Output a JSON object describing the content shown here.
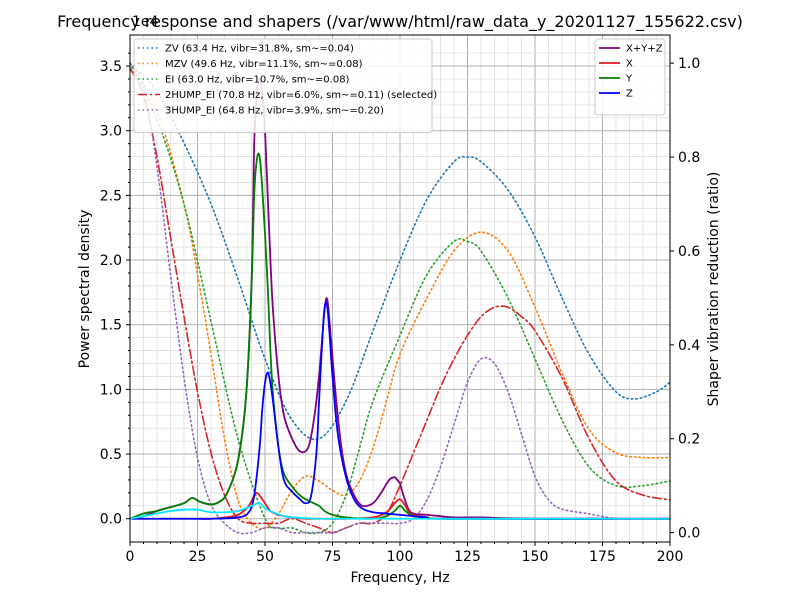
{
  "chart_data": {
    "type": "line",
    "title": "Frequency response and shapers (/var/www/html/raw_data_y_20201127_155622.csv)",
    "xlabel": "Frequency, Hz",
    "ylabel": "Power spectral density",
    "ylabel_right": "Shaper vibration reduction (ratio)",
    "y_multiplier": "1e4",
    "xlim": [
      0,
      200
    ],
    "ylim": [
      -0.18,
      3.74
    ],
    "ylim_right": [
      -0.02,
      1.06
    ],
    "x_ticks": [
      "0",
      "25",
      "50",
      "75",
      "100",
      "125",
      "150",
      "175",
      "200"
    ],
    "y_ticks": [
      "0.0",
      "0.5",
      "1.0",
      "1.5",
      "2.0",
      "2.5",
      "3.0",
      "3.5"
    ],
    "y_ticks_right": [
      "0.0",
      "0.2",
      "0.4",
      "0.6",
      "0.8",
      "1.0"
    ],
    "grid": true,
    "psd_series": [
      {
        "name": "X+Y+Z",
        "color": "#800080",
        "style": "solid",
        "x": [
          0,
          5,
          10,
          15,
          20,
          23,
          26,
          30,
          33,
          36,
          40,
          43,
          45,
          46,
          47,
          48,
          49,
          50,
          51,
          52,
          53,
          55,
          57,
          60,
          63,
          66,
          68,
          70,
          72,
          73,
          74,
          76,
          78,
          80,
          83,
          86,
          90,
          93,
          96,
          98,
          99,
          100,
          101,
          103,
          105,
          110,
          115,
          120,
          130,
          150,
          200
        ],
        "y": [
          0.0,
          0.02,
          0.06,
          0.09,
          0.12,
          0.16,
          0.13,
          0.11,
          0.13,
          0.2,
          0.45,
          0.95,
          1.8,
          2.9,
          3.3,
          3.4,
          3.3,
          3.0,
          2.5,
          2.0,
          1.6,
          1.1,
          0.8,
          0.62,
          0.52,
          0.55,
          0.75,
          1.1,
          1.6,
          1.7,
          1.5,
          1.0,
          0.6,
          0.35,
          0.18,
          0.1,
          0.12,
          0.2,
          0.3,
          0.32,
          0.3,
          0.27,
          0.2,
          0.08,
          0.04,
          0.03,
          0.02,
          0.01,
          0.01,
          0.0,
          0.0
        ]
      },
      {
        "name": "X",
        "color": "#e41a1c",
        "style": "solid",
        "x": [
          0,
          10,
          20,
          30,
          35,
          40,
          44,
          46,
          47,
          48,
          50,
          52,
          55,
          60,
          65,
          70,
          80,
          90,
          95,
          98,
          100,
          102,
          104,
          110,
          120,
          200
        ],
        "y": [
          0.0,
          0.0,
          0.0,
          0.0,
          0.01,
          0.03,
          0.1,
          0.18,
          0.2,
          0.18,
          0.12,
          0.06,
          0.03,
          0.01,
          0.0,
          0.0,
          0.0,
          0.01,
          0.05,
          0.12,
          0.15,
          0.1,
          0.04,
          0.01,
          0.0,
          0.0
        ]
      },
      {
        "name": "Y",
        "color": "#008000",
        "style": "solid",
        "x": [
          0,
          5,
          10,
          15,
          20,
          23,
          26,
          30,
          33,
          36,
          40,
          43,
          45,
          46,
          47,
          48,
          49,
          50,
          51,
          52,
          53,
          55,
          57,
          60,
          63,
          66,
          70,
          72,
          75,
          80,
          90,
          95,
          98,
          100,
          102,
          105,
          110,
          120,
          200
        ],
        "y": [
          0.0,
          0.04,
          0.06,
          0.09,
          0.12,
          0.16,
          0.13,
          0.11,
          0.13,
          0.2,
          0.45,
          0.95,
          1.8,
          2.5,
          2.78,
          2.8,
          2.55,
          2.2,
          1.8,
          1.3,
          0.95,
          0.55,
          0.35,
          0.25,
          0.18,
          0.14,
          0.1,
          0.06,
          0.03,
          0.01,
          0.0,
          0.02,
          0.06,
          0.1,
          0.06,
          0.02,
          0.01,
          0.0,
          0.0
        ]
      },
      {
        "name": "Z",
        "color": "#0000ff",
        "style": "solid",
        "x": [
          0,
          10,
          20,
          30,
          40,
          44,
          46,
          48,
          49,
          50,
          51,
          52,
          53,
          55,
          57,
          60,
          63,
          65,
          67,
          69,
          70,
          71,
          72,
          73,
          74,
          75,
          77,
          80,
          83,
          86,
          90,
          95,
          100,
          105,
          110,
          115,
          200
        ],
        "y": [
          0.0,
          0.0,
          0.0,
          0.0,
          0.01,
          0.05,
          0.18,
          0.55,
          0.85,
          1.05,
          1.13,
          1.05,
          0.9,
          0.55,
          0.3,
          0.21,
          0.15,
          0.12,
          0.17,
          0.5,
          0.9,
          1.3,
          1.62,
          1.65,
          1.4,
          1.1,
          0.65,
          0.32,
          0.15,
          0.08,
          0.05,
          0.04,
          0.03,
          0.02,
          0.01,
          0.0,
          0.0
        ]
      },
      {
        "name": "",
        "color": "#00e5ff",
        "style": "solid",
        "x": [
          0,
          5,
          10,
          15,
          20,
          25,
          30,
          35,
          40,
          45,
          48,
          50,
          53,
          57,
          60,
          70,
          80,
          100,
          120,
          150,
          200
        ],
        "y": [
          0.0,
          0.02,
          0.04,
          0.06,
          0.07,
          0.07,
          0.05,
          0.05,
          0.06,
          0.1,
          0.12,
          0.08,
          0.05,
          0.02,
          0.01,
          0.0,
          0.0,
          0.0,
          0.0,
          0.0,
          0.0
        ]
      }
    ],
    "shaper_series": [
      {
        "name": "ZV (63.4 Hz, vibr=31.8%, sm~=0.04)",
        "color": "#1f77b4",
        "style": "dotted",
        "x": [
          0,
          10,
          20,
          30,
          40,
          50,
          60,
          70,
          80,
          90,
          100,
          110,
          120,
          125,
          130,
          140,
          150,
          160,
          170,
          180,
          187,
          195,
          200
        ],
        "y": [
          1.0,
          0.94,
          0.83,
          0.7,
          0.54,
          0.37,
          0.24,
          0.2,
          0.28,
          0.43,
          0.58,
          0.71,
          0.79,
          0.8,
          0.79,
          0.73,
          0.63,
          0.5,
          0.38,
          0.3,
          0.285,
          0.3,
          0.32
        ]
      },
      {
        "name": "MZV (49.6 Hz, vibr=11.1%, sm~=0.08)",
        "color": "#ff7f0e",
        "style": "dotted",
        "x": [
          0,
          10,
          20,
          25,
          30,
          35,
          40,
          45,
          50,
          55,
          60,
          65,
          70,
          75,
          80,
          85,
          90,
          95,
          100,
          110,
          120,
          130,
          140,
          150,
          160,
          170,
          180,
          190,
          200
        ],
        "y": [
          1.0,
          0.9,
          0.7,
          0.55,
          0.38,
          0.2,
          0.07,
          0.02,
          0.01,
          0.04,
          0.09,
          0.12,
          0.11,
          0.09,
          0.08,
          0.11,
          0.18,
          0.28,
          0.38,
          0.5,
          0.6,
          0.64,
          0.6,
          0.48,
          0.34,
          0.22,
          0.17,
          0.16,
          0.16
        ]
      },
      {
        "name": "EI (63.0 Hz, vibr=10.7%, sm~=0.08)",
        "color": "#2ca02c",
        "style": "dotted",
        "x": [
          0,
          10,
          20,
          30,
          40,
          50,
          55,
          60,
          65,
          70,
          75,
          80,
          85,
          90,
          100,
          110,
          120,
          125,
          130,
          140,
          150,
          160,
          170,
          180,
          190,
          200
        ],
        "y": [
          1.0,
          0.88,
          0.7,
          0.45,
          0.2,
          0.03,
          0.01,
          0.01,
          0.0,
          0.0,
          0.02,
          0.08,
          0.18,
          0.28,
          0.42,
          0.55,
          0.62,
          0.62,
          0.6,
          0.5,
          0.37,
          0.24,
          0.14,
          0.1,
          0.1,
          0.11
        ]
      },
      {
        "name": "2HUMP_EI (70.8 Hz, vibr=6.0%, sm~=0.11) (selected)",
        "color": "#d62728",
        "style": "dashdot",
        "x": [
          0,
          5,
          10,
          15,
          20,
          25,
          30,
          35,
          40,
          45,
          50,
          55,
          60,
          65,
          70,
          75,
          80,
          85,
          90,
          95,
          100,
          105,
          110,
          115,
          120,
          125,
          130,
          135,
          140,
          145,
          150,
          160,
          170,
          180,
          190,
          200
        ],
        "y": [
          0.99,
          0.93,
          0.8,
          0.63,
          0.46,
          0.3,
          0.17,
          0.08,
          0.03,
          0.02,
          0.02,
          0.02,
          0.03,
          0.02,
          0.01,
          0.0,
          0.01,
          0.02,
          0.02,
          0.04,
          0.1,
          0.17,
          0.24,
          0.31,
          0.37,
          0.42,
          0.46,
          0.48,
          0.48,
          0.46,
          0.43,
          0.33,
          0.2,
          0.11,
          0.08,
          0.07
        ]
      },
      {
        "name": "3HUMP_EI (64.8 Hz, vibr=3.9%, sm~=0.20)",
        "color": "#9467bd",
        "style": "dotted",
        "x": [
          0,
          5,
          10,
          15,
          20,
          25,
          30,
          35,
          40,
          45,
          50,
          55,
          60,
          65,
          70,
          75,
          80,
          85,
          90,
          95,
          100,
          105,
          110,
          115,
          120,
          125,
          130,
          135,
          140,
          145,
          150,
          155,
          160,
          170,
          180,
          190,
          200
        ],
        "y": [
          1.0,
          0.95,
          0.78,
          0.55,
          0.33,
          0.16,
          0.06,
          0.02,
          0.0,
          0.0,
          0.01,
          0.01,
          0.0,
          0.0,
          0.0,
          0.0,
          0.01,
          0.02,
          0.02,
          0.02,
          0.02,
          0.03,
          0.07,
          0.14,
          0.23,
          0.32,
          0.37,
          0.36,
          0.3,
          0.21,
          0.12,
          0.07,
          0.05,
          0.04,
          0.03,
          0.03,
          0.03
        ]
      }
    ],
    "legend_left_position": "top-left",
    "legend_right_position": "top-right"
  }
}
